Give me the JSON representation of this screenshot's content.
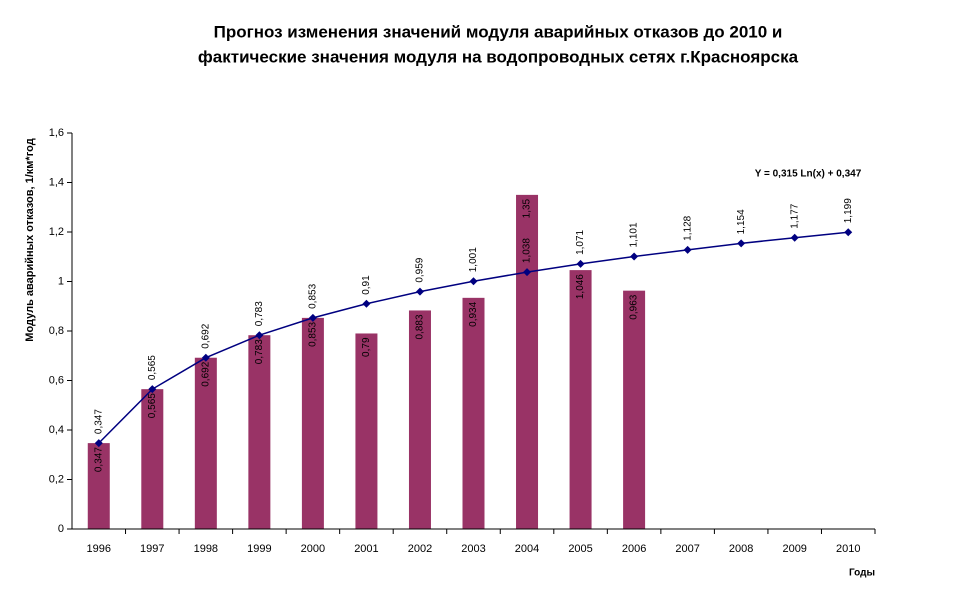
{
  "chart_data": {
    "type": "bar",
    "title": [
      "Прогноз изменения значений модуля аварийных отказов до  2010 и",
      "фактические значения модуля  на водопроводных сетях г.Красноярска"
    ],
    "ylabel": "Модуль аварийных отказов, 1/км*год",
    "xlabel": "Годы",
    "annotation": "Y = 0,315 Ln(x) + 0,347",
    "categories": [
      "1996",
      "1997",
      "1998",
      "1999",
      "2000",
      "2001",
      "2002",
      "2003",
      "2004",
      "2005",
      "2006",
      "2007",
      "2008",
      "2009",
      "2010"
    ],
    "series": [
      {
        "type": "bar",
        "color": "#993366",
        "values": [
          0.347,
          0.565,
          0.692,
          0.783,
          0.853,
          0.79,
          0.883,
          0.934,
          1.35,
          1.046,
          0.963,
          null,
          null,
          null,
          null
        ],
        "value_labels": [
          "0,347",
          "0,565",
          "0,692",
          "0,783",
          "0,853",
          "0,79",
          "0,883",
          "0,934",
          "1,35",
          "1,046",
          "0,963",
          null,
          null,
          null,
          null
        ]
      },
      {
        "type": "line",
        "color": "#000080",
        "values": [
          0.347,
          0.565,
          0.692,
          0.783,
          0.853,
          0.91,
          0.959,
          1.001,
          1.038,
          1.071,
          1.101,
          1.128,
          1.154,
          1.177,
          1.199
        ],
        "value_labels": [
          "0,347",
          "0,565",
          "0,692",
          "0,783",
          "0,853",
          "0,91",
          "0,959",
          "1,001",
          "1,038",
          "1,071",
          "1,101",
          "1,128",
          "1,154",
          "1,177",
          "1,199"
        ]
      }
    ],
    "ylim": [
      0,
      1.6
    ],
    "yticks": [
      0,
      {
        "value": 0.2,
        "label": "0,2"
      },
      {
        "value": 0.4,
        "label": "0,4"
      },
      {
        "value": 0.6,
        "label": "0,6"
      },
      {
        "value": 0.8,
        "label": "0,8"
      },
      1,
      {
        "value": 1.2,
        "label": "1,2"
      },
      {
        "value": 1.4,
        "label": "1,4"
      },
      {
        "value": 1.6,
        "label": "1,6"
      }
    ],
    "grid": false
  }
}
